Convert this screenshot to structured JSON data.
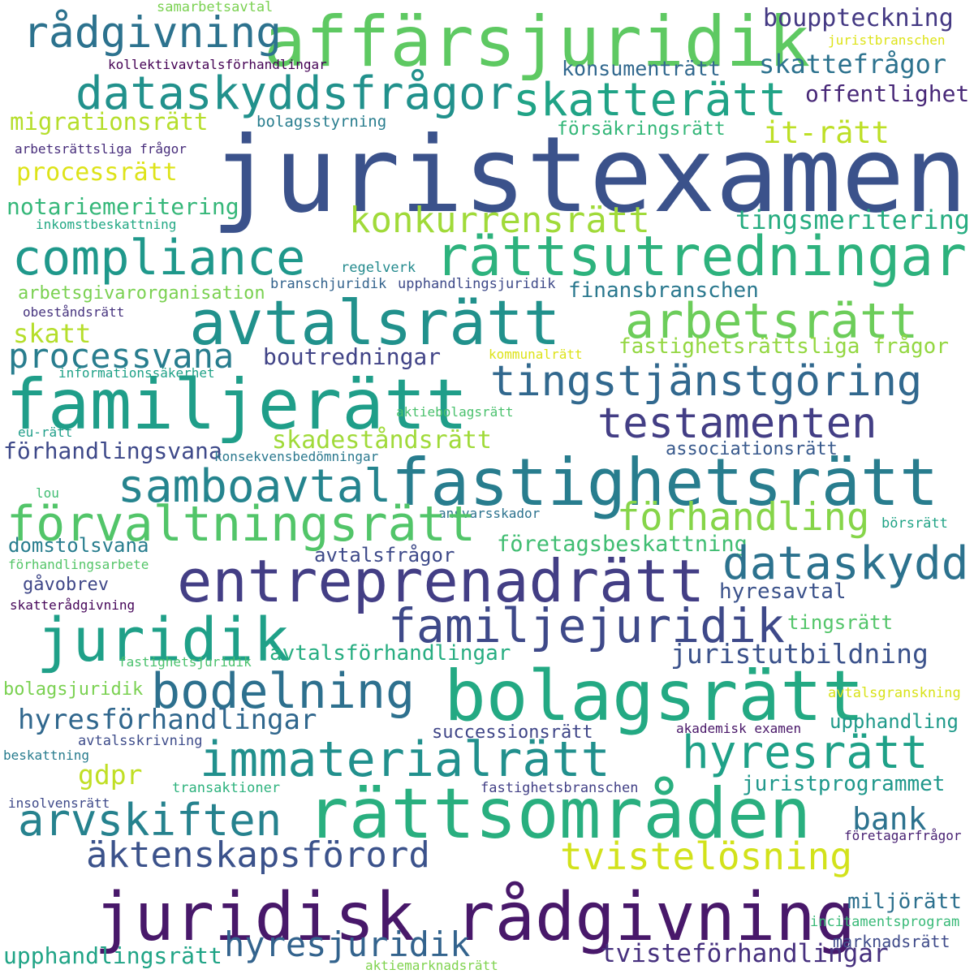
{
  "words": [
    {
      "text": "juristexamen",
      "color": "#3b528b"
    },
    {
      "text": "affärsjuridik",
      "color": "#5ec962"
    },
    {
      "text": "rådgivning",
      "color": "#2c728e"
    },
    {
      "text": "bouppteckning",
      "color": "#443983"
    },
    {
      "text": "samarbetsavtal",
      "color": "#7ad151"
    },
    {
      "text": "juristbranschen",
      "color": "#dde318"
    },
    {
      "text": "kollektivavtalsförhandlingar",
      "color": "#440154"
    },
    {
      "text": "konsumenträtt",
      "color": "#31688e"
    },
    {
      "text": "skattefrågor",
      "color": "#2c728e"
    },
    {
      "text": "dataskyddsfrågor",
      "color": "#21918c"
    },
    {
      "text": "skatterätt",
      "color": "#20a386"
    },
    {
      "text": "offentlighet",
      "color": "#482878"
    },
    {
      "text": "migrationsrätt",
      "color": "#b5de2b"
    },
    {
      "text": "bolagsstyrning",
      "color": "#287d8e"
    },
    {
      "text": "försäkringsrätt",
      "color": "#35b779"
    },
    {
      "text": "it-rätt",
      "color": "#bddf26"
    },
    {
      "text": "arbetsrättsliga frågor",
      "color": "#472d7b"
    },
    {
      "text": "processrätt",
      "color": "#dde318"
    },
    {
      "text": "notariemeritering",
      "color": "#35b779"
    },
    {
      "text": "konkurrensrätt",
      "color": "#a0da39"
    },
    {
      "text": "tingsmeritering",
      "color": "#27ad81"
    },
    {
      "text": "inkomstbeskattning",
      "color": "#22a884"
    },
    {
      "text": "compliance",
      "color": "#1f988b"
    },
    {
      "text": "rättsutredningar",
      "color": "#2db27d"
    },
    {
      "text": "regelverk",
      "color": "#238a8d"
    },
    {
      "text": "branschjuridik",
      "color": "#33638d"
    },
    {
      "text": "upphandlingsjuridik",
      "color": "#3e4a89"
    },
    {
      "text": "arbetsgivarorganisation",
      "color": "#7ad151"
    },
    {
      "text": "finansbranschen",
      "color": "#2a788e"
    },
    {
      "text": "obeståndsrätt",
      "color": "#46337e"
    },
    {
      "text": "avtalsrätt",
      "color": "#21918c"
    },
    {
      "text": "arbetsrätt",
      "color": "#6ccd5a"
    },
    {
      "text": "skatt",
      "color": "#b5de2b"
    },
    {
      "text": "processvana",
      "color": "#287d8e"
    },
    {
      "text": "boutredningar",
      "color": "#414487"
    },
    {
      "text": "kommunalrätt",
      "color": "#dde318"
    },
    {
      "text": "fastighetsrättsliga frågor",
      "color": "#93d741"
    },
    {
      "text": "informationssäkerhet",
      "color": "#1fa187"
    },
    {
      "text": "familjerätt",
      "color": "#1f9e89"
    },
    {
      "text": "tingstjänstgöring",
      "color": "#31688e"
    },
    {
      "text": "aktiebolagsrätt",
      "color": "#4ac16d"
    },
    {
      "text": "testamenten",
      "color": "#433e85"
    },
    {
      "text": "eu-rätt",
      "color": "#1f9e89"
    },
    {
      "text": "skadeståndsrätt",
      "color": "#a0da39"
    },
    {
      "text": "förhandlingsvana",
      "color": "#3e4989"
    },
    {
      "text": "konsekvensbedömningar",
      "color": "#2a788e"
    },
    {
      "text": "associationsrätt",
      "color": "#38598c"
    },
    {
      "text": "fastighetsrätt",
      "color": "#287d8e"
    },
    {
      "text": "samboavtal",
      "color": "#25848e"
    },
    {
      "text": "lou",
      "color": "#40bd72"
    },
    {
      "text": "ansvarsskador",
      "color": "#2c728e"
    },
    {
      "text": "förvaltningsrätt",
      "color": "#52c569"
    },
    {
      "text": "förhandling",
      "color": "#86d549"
    },
    {
      "text": "börsrätt",
      "color": "#20a386"
    },
    {
      "text": "domstolsvana",
      "color": "#287d8e"
    },
    {
      "text": "företagsbeskattning",
      "color": "#40bd72"
    },
    {
      "text": "avtalsfrågor",
      "color": "#3e4a89"
    },
    {
      "text": "förhandlingsarbete",
      "color": "#54c568"
    },
    {
      "text": "dataskydd",
      "color": "#2c728e"
    },
    {
      "text": "entreprenadrätt",
      "color": "#433e85"
    },
    {
      "text": "gåvobrev",
      "color": "#3f4788"
    },
    {
      "text": "hyresavtal",
      "color": "#3b528b"
    },
    {
      "text": "skatterådgivning",
      "color": "#450559"
    },
    {
      "text": "juridik",
      "color": "#1fa088"
    },
    {
      "text": "familjejuridik",
      "color": "#3e4989"
    },
    {
      "text": "tingsrätt",
      "color": "#52c569"
    },
    {
      "text": "avtalsförhandlingar",
      "color": "#27ad81"
    },
    {
      "text": "fastighetsjuridik",
      "color": "#4ac16d"
    },
    {
      "text": "juristutbildning",
      "color": "#3b528b"
    },
    {
      "text": "bodelning",
      "color": "#2d708e"
    },
    {
      "text": "bolagsrätt",
      "color": "#23a983"
    },
    {
      "text": "bolagsjuridik",
      "color": "#7ad151"
    },
    {
      "text": "avtalsgranskning",
      "color": "#d8e219"
    },
    {
      "text": "hyresförhandlingar",
      "color": "#30678d"
    },
    {
      "text": "successionsrätt",
      "color": "#404688"
    },
    {
      "text": "akademisk examen",
      "color": "#481668"
    },
    {
      "text": "upphandling",
      "color": "#1f9a8a"
    },
    {
      "text": "avtalsskrivning",
      "color": "#3e4c8a"
    },
    {
      "text": "immaterialrätt",
      "color": "#21908d"
    },
    {
      "text": "hyresrätt",
      "color": "#1fa188"
    },
    {
      "text": "beskattning",
      "color": "#287c8e"
    },
    {
      "text": "gdpr",
      "color": "#c0df25"
    },
    {
      "text": "juristprogrammet",
      "color": "#1f988b"
    },
    {
      "text": "insolvensrätt",
      "color": "#3e4989"
    },
    {
      "text": "transaktioner",
      "color": "#2db27d"
    },
    {
      "text": "fastighetsbranschen",
      "color": "#424086"
    },
    {
      "text": "arvskiften",
      "color": "#26828e"
    },
    {
      "text": "rättsområden",
      "color": "#29af7f"
    },
    {
      "text": "bank",
      "color": "#2c728e"
    },
    {
      "text": "företagarfrågor",
      "color": "#482173"
    },
    {
      "text": "äktenskapsförord",
      "color": "#3b528b"
    },
    {
      "text": "tvistelösning",
      "color": "#d2e21b"
    },
    {
      "text": "juridisk rådgivning",
      "color": "#48186a"
    },
    {
      "text": "miljörätt",
      "color": "#2d708e"
    },
    {
      "text": "incitamentsprogram",
      "color": "#38b977"
    },
    {
      "text": "marknadsrätt",
      "color": "#3e4a89"
    },
    {
      "text": "upphandlingsrätt",
      "color": "#20a486"
    },
    {
      "text": "hyresjuridik",
      "color": "#33638d"
    },
    {
      "text": "tvisteförhandlingar",
      "color": "#46307e"
    },
    {
      "text": "aktiemarknadsrätt",
      "color": "#7fd34e"
    }
  ]
}
